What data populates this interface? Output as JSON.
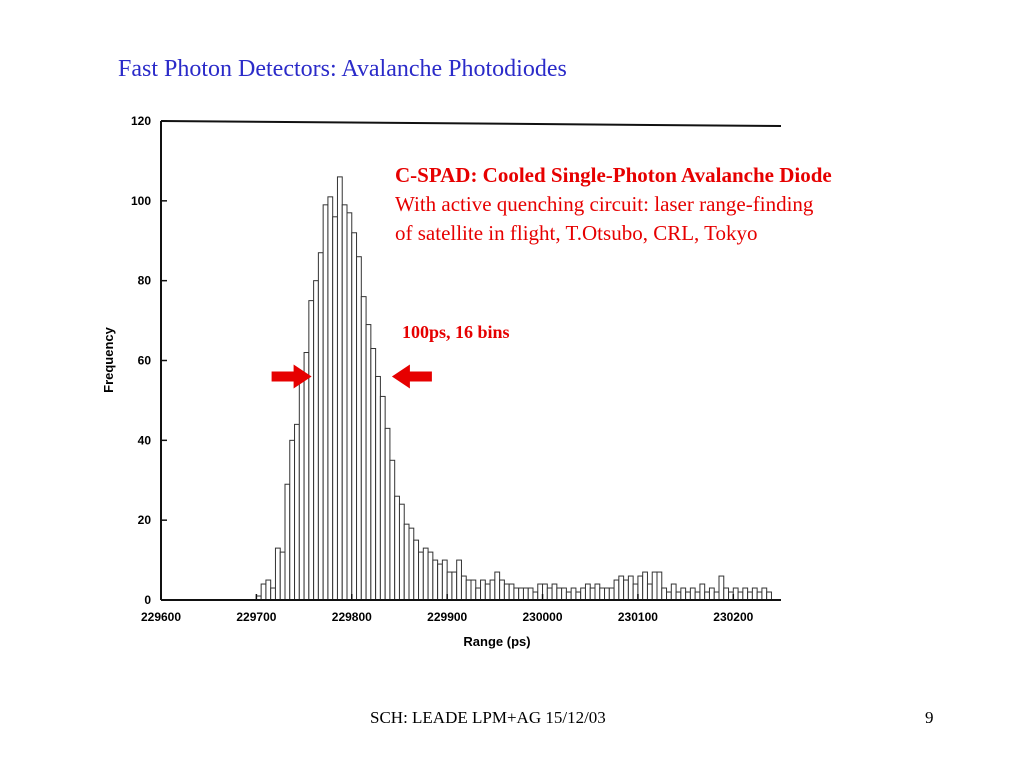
{
  "slide": {
    "title": "Fast Photon Detectors: Avalanche Photodiodes",
    "footer": "SCH: LEADE  LPM+AG 15/12/03",
    "page_number": "9"
  },
  "annotation": {
    "heading": "C-SPAD: Cooled Single-Photon Avalanche Diode",
    "line1": "With active quenching circuit: laser range-finding",
    "line2": "of satellite in flight, T.Otsubo, CRL, Tokyo",
    "bins_label": "100ps, 16 bins",
    "color": "#e60000"
  },
  "colors": {
    "title": "#2b2bc9",
    "annotation": "#e60000",
    "arrow": "#e60000"
  },
  "chart_data": {
    "type": "bar",
    "title": "",
    "xlabel": "Range (ps)",
    "ylabel": "Frequency",
    "xlim": [
      229600,
      230250
    ],
    "ylim": [
      0,
      120
    ],
    "xticks": [
      229600,
      229700,
      229800,
      229900,
      230000,
      230100,
      230200
    ],
    "xtick_labels": [
      "229600",
      "229700",
      "229800",
      "229900",
      "230000",
      "230100",
      "230200"
    ],
    "yticks": [
      0,
      20,
      40,
      60,
      80,
      100,
      120
    ],
    "ytick_labels": [
      "0",
      "20",
      "40",
      "60",
      "80",
      "100",
      "120"
    ],
    "bin_width": 5,
    "grid": false,
    "series": [
      {
        "x": [
          229695,
          229700,
          229705,
          229710,
          229715,
          229720,
          229725,
          229730,
          229735,
          229740,
          229745,
          229750,
          229755,
          229760,
          229765,
          229770,
          229775,
          229780,
          229785,
          229790,
          229795,
          229800,
          229805,
          229810,
          229815,
          229820,
          229825,
          229830,
          229835,
          229840,
          229845,
          229850,
          229855,
          229860,
          229865,
          229870,
          229875,
          229880,
          229885,
          229890,
          229895,
          229900,
          229905,
          229910,
          229915,
          229920,
          229925,
          229930,
          229935,
          229940,
          229945,
          229950,
          229955,
          229960,
          229965,
          229970,
          229975,
          229980,
          229985,
          229990,
          229995,
          230000,
          230005,
          230010,
          230015,
          230020,
          230025,
          230030,
          230035,
          230040,
          230045,
          230050,
          230055,
          230060,
          230065,
          230070,
          230075,
          230080,
          230085,
          230090,
          230095,
          230100,
          230105,
          230110,
          230115,
          230120,
          230125,
          230130,
          230135,
          230140,
          230145,
          230150,
          230155,
          230160,
          230165,
          230170,
          230175,
          230180,
          230185,
          230190,
          230195,
          230200,
          230205,
          230210,
          230215,
          230220,
          230225,
          230230,
          230235
        ],
        "values": [
          0,
          1,
          4,
          5,
          3,
          13,
          12,
          29,
          40,
          44,
          56,
          62,
          75,
          80,
          87,
          99,
          101,
          96,
          106,
          99,
          97,
          92,
          86,
          76,
          69,
          63,
          56,
          51,
          43,
          35,
          26,
          24,
          19,
          18,
          15,
          12,
          13,
          12,
          10,
          9,
          10,
          7,
          7,
          10,
          6,
          5,
          5,
          3,
          5,
          4,
          5,
          7,
          5,
          4,
          4,
          3,
          3,
          3,
          3,
          2,
          4,
          4,
          3,
          4,
          3,
          3,
          2,
          3,
          2,
          3,
          4,
          3,
          4,
          3,
          3,
          3,
          5,
          6,
          5,
          6,
          4,
          6,
          7,
          4,
          7,
          7,
          3,
          2,
          4,
          2,
          3,
          2,
          3,
          2,
          4,
          2,
          3,
          2,
          6,
          3,
          2,
          3,
          2,
          3,
          2,
          3,
          2,
          3,
          2
        ]
      }
    ],
    "markers": [
      {
        "type": "arrow",
        "direction": "right",
        "x": 229760,
        "y": 56
      },
      {
        "type": "arrow",
        "direction": "left",
        "x": 229840,
        "y": 56
      }
    ]
  }
}
